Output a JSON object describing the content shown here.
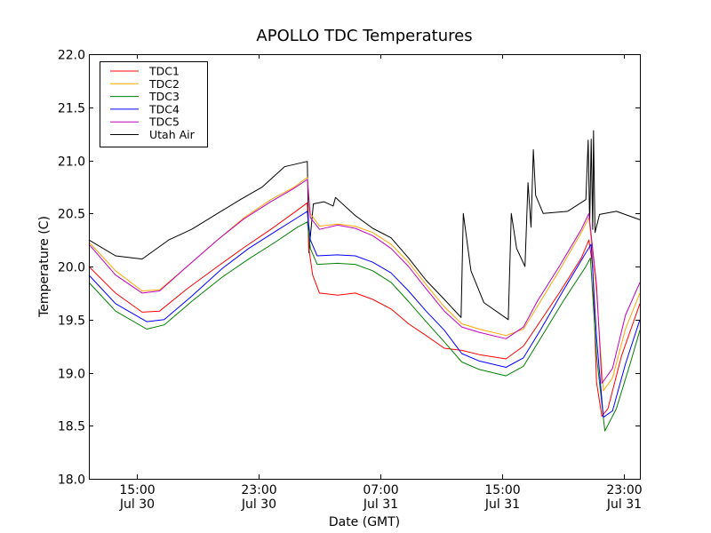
{
  "chart_data": {
    "type": "line",
    "title": "APOLLO TDC Temperatures",
    "xlabel": "Date (GMT)",
    "ylabel": "Temperature (C)",
    "x_units": "hours since Jul 30 00:00 GMT",
    "xlim": [
      11.85,
      48.05
    ],
    "ylim": [
      18.0,
      22.0
    ],
    "grid": false,
    "legend_position": "top-left",
    "yticks": [
      {
        "value": 18.0,
        "label": "18.0"
      },
      {
        "value": 18.5,
        "label": "18.5"
      },
      {
        "value": 19.0,
        "label": "19.0"
      },
      {
        "value": 19.5,
        "label": "19.5"
      },
      {
        "value": 20.0,
        "label": "20.0"
      },
      {
        "value": 20.5,
        "label": "20.5"
      },
      {
        "value": 21.0,
        "label": "21.0"
      },
      {
        "value": 21.5,
        "label": "21.5"
      },
      {
        "value": 22.0,
        "label": "22.0"
      }
    ],
    "xticks": [
      {
        "value": 15,
        "time": "15:00",
        "date": "Jul 30"
      },
      {
        "value": 23,
        "time": "23:00",
        "date": "Jul 30"
      },
      {
        "value": 31,
        "time": "07:00",
        "date": "Jul 31"
      },
      {
        "value": 39,
        "time": "15:00",
        "date": "Jul 31"
      },
      {
        "value": 47,
        "time": "23:00",
        "date": "Jul 31"
      }
    ],
    "series": [
      {
        "name": "TDC1",
        "color": "#ff0000",
        "x": [
          11.85,
          13.6,
          15.35,
          16.5,
          18.3,
          20.3,
          22.05,
          23.8,
          25.25,
          26.2,
          26.3,
          26.55,
          27.0,
          28.2,
          29.35,
          30.5,
          31.7,
          32.85,
          34.0,
          35.2,
          36.35,
          37.5,
          39.25,
          40.4,
          41.3,
          42.75,
          44.2,
          44.7,
          44.95,
          45.2,
          45.55,
          45.95,
          46.85,
          48.05
        ],
        "y": [
          20.0,
          19.75,
          19.57,
          19.58,
          19.79,
          20.0,
          20.18,
          20.35,
          20.5,
          20.6,
          20.17,
          19.92,
          19.75,
          19.73,
          19.75,
          19.69,
          19.6,
          19.46,
          19.35,
          19.23,
          19.21,
          19.17,
          19.13,
          19.25,
          19.44,
          19.75,
          20.08,
          20.25,
          20.0,
          18.91,
          18.59,
          18.66,
          19.16,
          19.65
        ]
      },
      {
        "name": "TDC2",
        "color": "#ffa500",
        "x": [
          11.85,
          13.6,
          15.35,
          16.5,
          18.3,
          20.3,
          22.05,
          23.8,
          25.25,
          26.2,
          26.4,
          27.0,
          28.2,
          29.35,
          30.5,
          31.7,
          32.85,
          34.0,
          35.2,
          36.35,
          37.5,
          39.25,
          40.4,
          41.3,
          42.75,
          44.2,
          44.7,
          45.2,
          45.65,
          46.25,
          47.1,
          48.05
        ],
        "y": [
          20.23,
          19.96,
          19.77,
          19.78,
          20.0,
          20.25,
          20.46,
          20.63,
          20.74,
          20.84,
          20.5,
          20.38,
          20.4,
          20.38,
          20.32,
          20.21,
          20.04,
          19.83,
          19.62,
          19.46,
          19.41,
          19.35,
          19.41,
          19.62,
          19.96,
          20.32,
          20.46,
          19.75,
          18.83,
          18.95,
          19.41,
          19.75
        ]
      },
      {
        "name": "TDC3",
        "color": "#008000",
        "x": [
          11.85,
          13.6,
          15.65,
          16.8,
          18.6,
          20.6,
          22.35,
          24.1,
          25.55,
          26.2,
          26.4,
          26.85,
          28.2,
          29.35,
          30.5,
          31.7,
          32.85,
          34.0,
          35.2,
          36.35,
          37.5,
          39.25,
          40.4,
          41.55,
          43.0,
          44.5,
          44.8,
          45.2,
          45.75,
          46.5,
          47.4,
          48.05
        ],
        "y": [
          19.85,
          19.58,
          19.41,
          19.45,
          19.67,
          19.9,
          20.07,
          20.23,
          20.37,
          20.42,
          20.17,
          20.02,
          20.03,
          20.02,
          19.96,
          19.85,
          19.67,
          19.48,
          19.29,
          19.1,
          19.03,
          18.97,
          19.06,
          19.33,
          19.67,
          20.0,
          20.08,
          19.16,
          18.45,
          18.66,
          19.08,
          19.4
        ]
      },
      {
        "name": "TDC4",
        "color": "#0000ff",
        "x": [
          11.85,
          13.6,
          15.65,
          16.8,
          18.6,
          20.6,
          22.35,
          24.1,
          25.55,
          26.2,
          26.4,
          26.85,
          28.2,
          29.35,
          30.5,
          31.7,
          32.85,
          34.0,
          35.2,
          36.35,
          37.5,
          39.25,
          40.4,
          41.55,
          43.0,
          44.5,
          44.85,
          45.2,
          45.65,
          46.25,
          47.1,
          48.05
        ],
        "y": [
          19.92,
          19.65,
          19.48,
          19.5,
          19.72,
          19.98,
          20.17,
          20.33,
          20.46,
          20.52,
          20.25,
          20.1,
          20.11,
          20.1,
          20.04,
          19.94,
          19.77,
          19.58,
          19.4,
          19.18,
          19.11,
          19.05,
          19.14,
          19.41,
          19.77,
          20.13,
          20.21,
          19.33,
          18.58,
          18.64,
          19.08,
          19.5
        ]
      },
      {
        "name": "TDC5",
        "color": "#bf00bf",
        "x": [
          11.85,
          13.6,
          15.35,
          16.5,
          18.3,
          20.3,
          22.05,
          23.8,
          25.25,
          26.2,
          26.4,
          27.0,
          28.2,
          29.35,
          30.5,
          31.7,
          32.85,
          34.0,
          35.2,
          36.35,
          37.5,
          39.25,
          40.4,
          41.3,
          42.75,
          44.2,
          44.7,
          45.2,
          45.55,
          46.25,
          47.1,
          48.05
        ],
        "y": [
          20.21,
          19.92,
          19.75,
          19.77,
          20.0,
          20.25,
          20.45,
          20.61,
          20.73,
          20.82,
          20.46,
          20.35,
          20.39,
          20.36,
          20.29,
          20.17,
          20.0,
          19.79,
          19.58,
          19.43,
          19.38,
          19.32,
          19.43,
          19.67,
          20.0,
          20.35,
          20.5,
          19.83,
          18.9,
          19.04,
          19.54,
          19.85
        ]
      },
      {
        "name": "Utah Air",
        "color": "#000000",
        "x": [
          11.85,
          13.6,
          15.35,
          17.1,
          18.6,
          20.3,
          21.8,
          23.25,
          24.7,
          26.2,
          26.3,
          26.6,
          27.3,
          27.9,
          28.05,
          29.35,
          30.5,
          31.7,
          32.85,
          34.0,
          35.2,
          36.3,
          36.45,
          36.95,
          37.8,
          39.4,
          39.6,
          39.95,
          40.5,
          40.7,
          40.9,
          41.05,
          41.2,
          41.7,
          43.3,
          44.5,
          44.65,
          44.75,
          44.85,
          44.95,
          45.0,
          45.1,
          45.4,
          45.75,
          46.5,
          48.05
        ],
        "y": [
          20.25,
          20.1,
          20.07,
          20.25,
          20.35,
          20.5,
          20.63,
          20.75,
          20.94,
          20.99,
          20.13,
          20.59,
          20.61,
          20.57,
          20.65,
          20.48,
          20.36,
          20.27,
          20.08,
          19.87,
          19.69,
          19.52,
          20.5,
          19.96,
          19.66,
          19.5,
          20.5,
          20.17,
          20.0,
          20.79,
          20.37,
          21.1,
          20.67,
          20.5,
          20.52,
          20.63,
          21.19,
          20.4,
          21.2,
          20.35,
          21.28,
          20.32,
          20.49,
          20.5,
          20.52,
          20.44
        ]
      }
    ]
  }
}
